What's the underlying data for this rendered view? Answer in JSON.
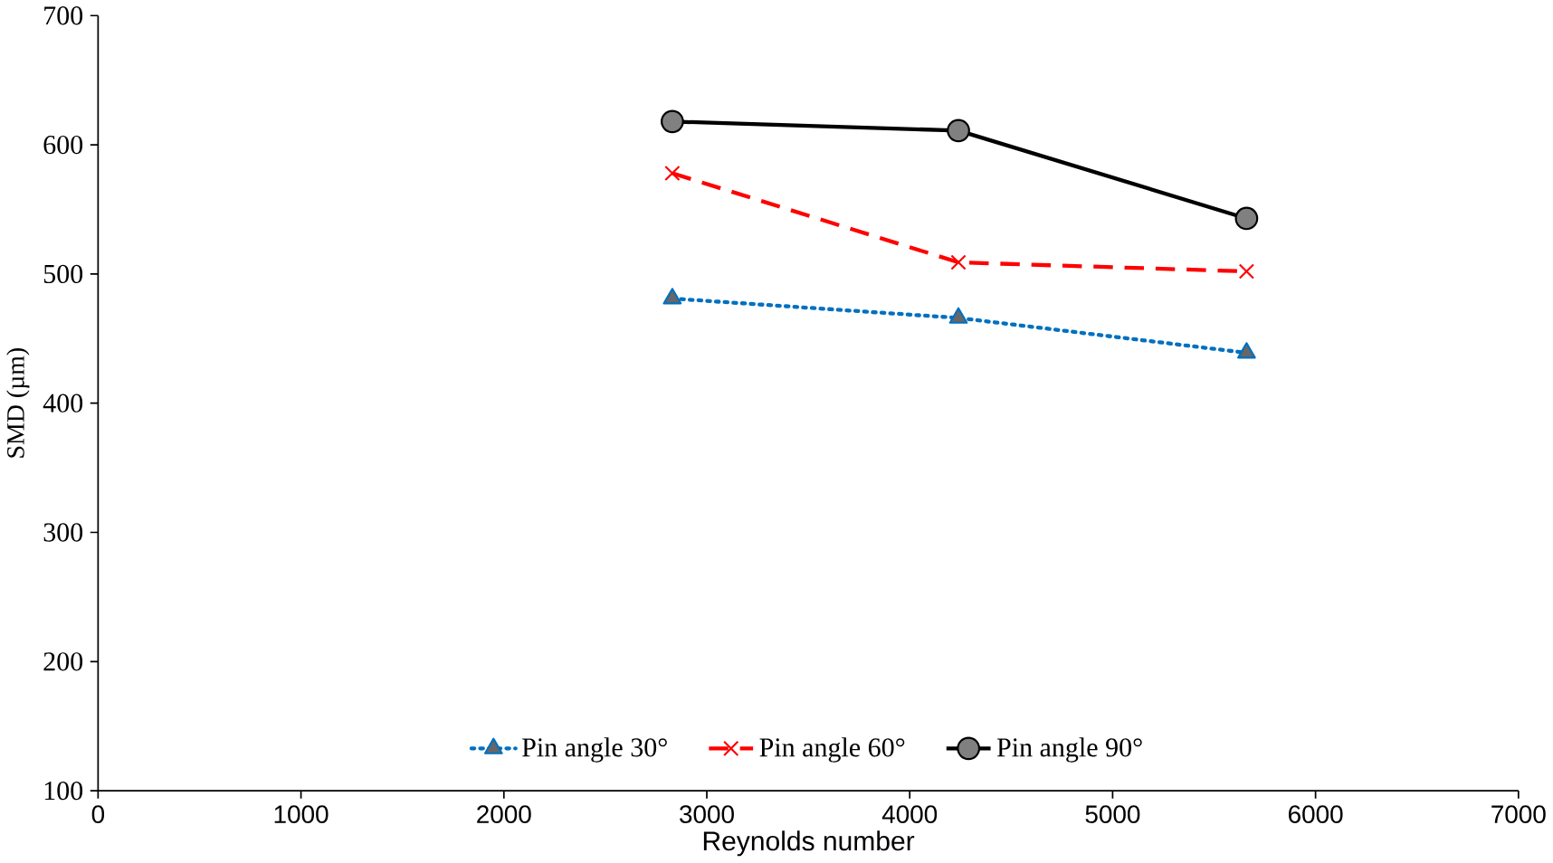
{
  "chart_data": {
    "type": "line",
    "xlabel": "Reynolds number",
    "ylabel": "SMD (µm)",
    "xlim": [
      0,
      7000
    ],
    "ylim": [
      100,
      700
    ],
    "xticks": [
      0,
      1000,
      2000,
      3000,
      4000,
      5000,
      6000,
      7000
    ],
    "yticks": [
      100,
      200,
      300,
      400,
      500,
      600,
      700
    ],
    "x": [
      2830,
      4240,
      5660
    ],
    "legend": "bottom",
    "grid": false,
    "series": [
      {
        "name": "Pin angle 30°",
        "color": "#0070c0",
        "values": [
          481,
          466,
          439
        ],
        "marker": "triangle",
        "line_style": "dotted"
      },
      {
        "name": "Pin angle 60°",
        "color": "#ff0000",
        "values": [
          578,
          509,
          502
        ],
        "marker": "cross",
        "line_style": "dashed"
      },
      {
        "name": "Pin angle 90°",
        "color": "#000000",
        "values": [
          618,
          611,
          543
        ],
        "marker": "circle",
        "line_style": "solid"
      }
    ]
  }
}
